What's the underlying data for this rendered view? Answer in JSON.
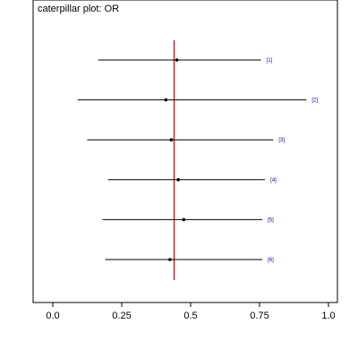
{
  "chart_data": {
    "type": "scatter",
    "title": "caterpillar plot: OR",
    "xlabel": "",
    "ylabel": "",
    "xlim": [
      -0.05,
      1.0
    ],
    "xticks": [
      0.0,
      0.25,
      0.5,
      0.75,
      1.0
    ],
    "xtick_labels": [
      "0.0",
      "0.25",
      "0.5",
      "0.75",
      "1.0"
    ],
    "reference_line": {
      "x": 0.44,
      "color": "#cc0000"
    },
    "series": [
      {
        "label": "[1]",
        "mean": 0.45,
        "lower": 0.165,
        "upper": 0.755
      },
      {
        "label": "[2]",
        "mean": 0.41,
        "lower": 0.09,
        "upper": 0.92
      },
      {
        "label": "[3]",
        "mean": 0.43,
        "lower": 0.125,
        "upper": 0.8
      },
      {
        "label": "[4]",
        "mean": 0.455,
        "lower": 0.2,
        "upper": 0.77
      },
      {
        "label": "[5]",
        "mean": 0.475,
        "lower": 0.18,
        "upper": 0.76
      },
      {
        "label": "[6]",
        "mean": 0.425,
        "lower": 0.19,
        "upper": 0.76
      }
    ],
    "grid": false,
    "colors": {
      "interval": "#000000",
      "point": "#000000",
      "label": "#0000cc",
      "frame": "#000000"
    }
  }
}
